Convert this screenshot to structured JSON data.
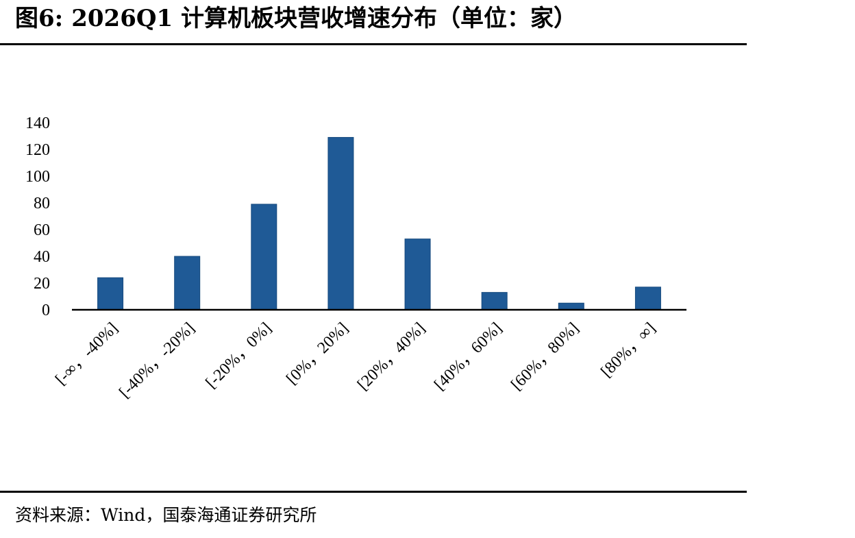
{
  "header": {
    "figure_label": "图6:",
    "title": "2026Q1 计算机板块营收增速分布（单位：家）"
  },
  "footer": {
    "source": "资料来源：Wind，国泰海通证券研究所"
  },
  "colors": {
    "bar": "#1f5a96",
    "axis": "#000000",
    "rule": "#000000"
  },
  "chart_data": {
    "type": "bar",
    "title": "2026Q1 计算机板块营收增速分布（单位：家）",
    "xlabel": "",
    "ylabel": "",
    "categories": [
      "[-∞，-40%]",
      "[-40%，-20%]",
      "[-20%，0%]",
      "[0%，20%]",
      "[20%，40%]",
      "[40%，60%]",
      "[60%，80%]",
      "[80%，∞]"
    ],
    "values": [
      24,
      40,
      79,
      129,
      53,
      13,
      5,
      17
    ],
    "ylim": [
      0,
      140
    ],
    "yticks": [
      0,
      20,
      40,
      60,
      80,
      100,
      120,
      140
    ],
    "grid": false,
    "legend": "none"
  }
}
